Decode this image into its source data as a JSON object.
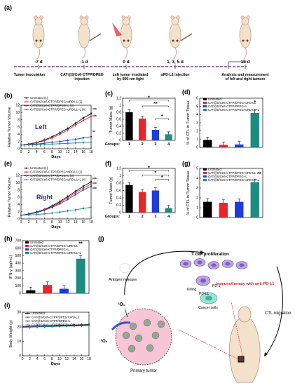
{
  "timeline": {
    "panel": "(a)",
    "days": [
      "-7 d",
      "-1 d",
      "0 d",
      "1, 3, 5 d",
      "18 d"
    ],
    "events": [
      "Tumor inoculation",
      "CAT@S/Ce6-CTPP/DPEG injection",
      "Left tumor irradiated by 660-nm light",
      "αPD-L1 injection",
      "Analysis and measurement of left and right tumors"
    ]
  },
  "colors": {
    "untreated": "#000000",
    "pdl1": "#e8252b",
    "light": "#1f3bd8",
    "combo": "#1c8c80"
  },
  "legend_4": [
    "Untreated (1)",
    "CAT@S/Ce6-CTPP/DPEG+αPD-L1 (2)",
    "CAT@S/Ce6-CTPP/DPEG+L (3)",
    "CAT@S/Ce6-CTPP/DPEG+αPD-L1+L (4)"
  ],
  "legend_short": [
    "Untreated",
    "CAT@S/Ce6-CTPP/DPEG+αPD-L1",
    "CAT@S/Ce6-CTPP/DPEG+L",
    "CAT@S/Ce6-CTPP/DPEG+αPD-L1+L"
  ],
  "chart_data": [
    {
      "panel": "(b)",
      "type": "line",
      "ylabel": "Relative Tumor Volume",
      "xlabel": "Days",
      "annotation": "Left",
      "ylim": [
        0,
        12
      ],
      "yticks": [
        0,
        2,
        4,
        6,
        8,
        10,
        12
      ],
      "x": [
        0,
        2,
        4,
        6,
        8,
        10,
        12,
        14,
        16,
        18
      ],
      "series": [
        {
          "name": "Untreated (1)",
          "values": [
            1,
            1.3,
            1.7,
            2.4,
            3.3,
            4.4,
            5.6,
            7.0,
            8.5,
            9.7
          ]
        },
        {
          "name": "CAT@S/Ce6-CTPP/DPEG+αPD-L1 (2)",
          "values": [
            1,
            1.2,
            1.6,
            2.2,
            3.0,
            4.0,
            5.2,
            6.5,
            7.8,
            8.9
          ]
        },
        {
          "name": "CAT@S/Ce6-CTPP/DPEG+L (3)",
          "values": [
            1,
            1.1,
            1.3,
            1.5,
            1.8,
            2.0,
            2.3,
            2.6,
            3.0,
            3.3
          ]
        },
        {
          "name": "CAT@S/Ce6-CTPP/DPEG+αPD-L1+L (4)",
          "values": [
            1,
            1.05,
            1.1,
            1.2,
            1.3,
            1.4,
            1.5,
            1.6,
            1.7,
            1.8
          ]
        }
      ],
      "marks": [
        "***",
        "***",
        "**"
      ]
    },
    {
      "panel": "(c)",
      "type": "bar",
      "ylabel": "Tumor Mass (g)",
      "xlabel": "Groups:",
      "categories": [
        "1",
        "2",
        "3",
        "4"
      ],
      "values": [
        0.8,
        0.62,
        0.3,
        0.17
      ],
      "ylim": [
        0,
        1.2
      ],
      "yticks": [
        0.0,
        0.2,
        0.4,
        0.6,
        0.8,
        1.0,
        1.2
      ],
      "sig": [
        "*",
        "**",
        "*"
      ]
    },
    {
      "panel": "(d)",
      "type": "bar",
      "ylabel": "% of CTL in Tumor Tissue",
      "categories": [
        "1",
        "2",
        "3",
        "4"
      ],
      "values": [
        0.9,
        0.3,
        0.35,
        4.2
      ],
      "ylim": [
        0,
        6
      ],
      "yticks": [
        0,
        1,
        2,
        3,
        4,
        5,
        6
      ],
      "sig": [
        "*"
      ]
    },
    {
      "panel": "(e)",
      "type": "line",
      "ylabel": "Relative Tumor Volume",
      "xlabel": "Days",
      "annotation": "Right",
      "ylim": [
        0,
        12
      ],
      "yticks": [
        0,
        2,
        4,
        6,
        8,
        10,
        12
      ],
      "x": [
        0,
        2,
        4,
        6,
        8,
        10,
        12,
        14,
        16,
        18
      ],
      "series": [
        {
          "name": "Untreated (1)",
          "values": [
            1,
            1.4,
            1.9,
            2.6,
            3.6,
            4.8,
            6.2,
            7.6,
            9.0,
            10.2
          ]
        },
        {
          "name": "CAT@S/Ce6-CTPP/DPEG+αPD-L1 (2)",
          "values": [
            1,
            1.3,
            1.8,
            2.5,
            3.4,
            4.5,
            5.8,
            7.2,
            8.5,
            9.6
          ]
        },
        {
          "name": "CAT@S/Ce6-CTPP/DPEG+L (3)",
          "values": [
            1,
            1.3,
            1.7,
            2.4,
            3.2,
            4.2,
            5.4,
            6.7,
            8.0,
            9.0
          ]
        },
        {
          "name": "CAT@S/Ce6-CTPP/DPEG+αPD-L1+L (4)",
          "values": [
            1,
            1.1,
            1.2,
            1.4,
            1.6,
            1.9,
            2.2,
            2.5,
            2.9,
            3.2
          ]
        }
      ],
      "marks": [
        "***",
        "***",
        "***"
      ]
    },
    {
      "panel": "(f)",
      "type": "bar",
      "ylabel": "Tumor Mass (g)",
      "xlabel": "Groups:",
      "categories": [
        "1",
        "2",
        "3",
        "4"
      ],
      "values": [
        0.75,
        0.56,
        0.6,
        0.12
      ],
      "ylim": [
        0,
        1.2
      ],
      "yticks": [
        0.0,
        0.2,
        0.4,
        0.6,
        0.8,
        1.0,
        1.2
      ],
      "sig": [
        "*",
        "*",
        "*"
      ]
    },
    {
      "panel": "(g)",
      "type": "bar",
      "ylabel": "% of CTL in Tumor Tissue",
      "categories": [
        "1",
        "2",
        "3",
        "4"
      ],
      "values": [
        1.6,
        1.5,
        1.6,
        3.6
      ],
      "ylim": [
        0,
        5
      ],
      "yticks": [
        0,
        1,
        2,
        3,
        4,
        5
      ],
      "sig": [
        "**"
      ]
    },
    {
      "panel": "(h)",
      "type": "bar",
      "ylabel": "IFN-γ (pg/mL)",
      "categories": [
        "1",
        "2",
        "3",
        "4"
      ],
      "values": [
        40,
        110,
        60,
        460
      ],
      "ylim": [
        0,
        700
      ],
      "yticks": [
        0,
        100,
        200,
        300,
        400,
        500,
        600,
        700
      ],
      "sig": [
        "**"
      ]
    },
    {
      "panel": "(i)",
      "type": "line",
      "ylabel": "Body Weight (g)",
      "xlabel": "Days",
      "ylim": [
        0,
        30
      ],
      "yticks": [
        0,
        10,
        20,
        30
      ],
      "x": [
        0,
        2,
        4,
        6,
        8,
        10,
        12,
        14,
        16,
        18
      ],
      "series": [
        {
          "name": "Untreated",
          "values": [
            20,
            20.3,
            20.5,
            20.6,
            20.8,
            21,
            21,
            21.2,
            21.3,
            21.5
          ]
        },
        {
          "name": "CAT@S/Ce6-CTPP/DPEG+αPD-L1",
          "values": [
            19.8,
            20,
            20.2,
            20.4,
            20.5,
            20.6,
            20.8,
            20.9,
            21,
            21.1
          ]
        },
        {
          "name": "CAT@S/Ce6-CTPP/DPEG+L",
          "values": [
            19.6,
            19.9,
            20.1,
            20.2,
            20.3,
            20.5,
            20.6,
            20.7,
            20.9,
            21
          ]
        },
        {
          "name": "CAT@S/Ce6-CTPP/DPEG+αPD-L1+L",
          "values": [
            19.5,
            19.7,
            19.9,
            20,
            20.1,
            20.3,
            20.4,
            20.5,
            20.6,
            20.8
          ]
        }
      ]
    }
  ],
  "schematic": {
    "panel": "(j)",
    "labels": {
      "tcell": "T cell proliferation",
      "antigen": "Antigen release",
      "killing": "Killing",
      "pd1": "PD-1",
      "pdl1": "PD-L1",
      "cancer": "Cancer cells",
      "immuno": "Immunotherapy with anti-PD-L1",
      "ctl": "CTL migration",
      "o2": "¹O₂",
      "o2t": "³O₂",
      "primary": "Primary tumor"
    }
  },
  "xticks_days": [
    "0",
    "2",
    "4",
    "6",
    "8",
    "10",
    "12",
    "14",
    "16",
    "18"
  ],
  "group_labels": [
    "1",
    "2",
    "3",
    "4"
  ]
}
